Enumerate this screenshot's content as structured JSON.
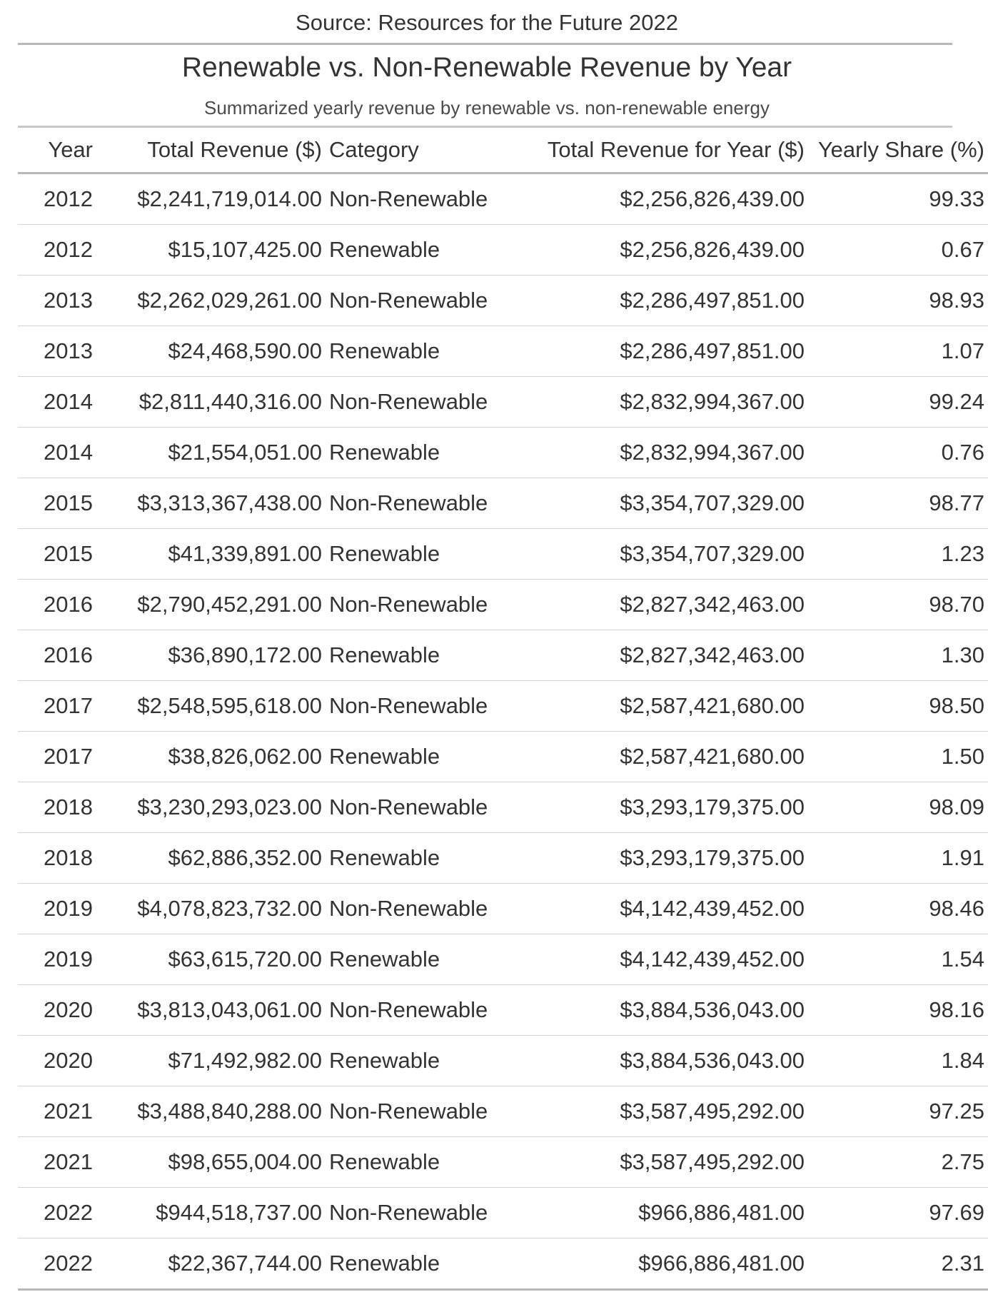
{
  "source": "Source: Resources for the Future 2022",
  "title": "Renewable vs. Non-Renewable Revenue by Year",
  "subtitle": "Summarized yearly revenue by renewable vs. non-renewable energy",
  "colors": {
    "text": "#333333",
    "rule": "#b8b8b8",
    "row_rule": "#d3d3d3"
  },
  "chart_data": {
    "type": "table",
    "columns": [
      "Year",
      "Total Revenue ($)",
      "Category",
      "Total Revenue for Year ($)",
      "Yearly Share (%)"
    ],
    "rows": [
      [
        "2012",
        "$2,241,719,014.00",
        "Non-Renewable",
        "$2,256,826,439.00",
        "99.33"
      ],
      [
        "2012",
        "$15,107,425.00",
        "Renewable",
        "$2,256,826,439.00",
        "0.67"
      ],
      [
        "2013",
        "$2,262,029,261.00",
        "Non-Renewable",
        "$2,286,497,851.00",
        "98.93"
      ],
      [
        "2013",
        "$24,468,590.00",
        "Renewable",
        "$2,286,497,851.00",
        "1.07"
      ],
      [
        "2014",
        "$2,811,440,316.00",
        "Non-Renewable",
        "$2,832,994,367.00",
        "99.24"
      ],
      [
        "2014",
        "$21,554,051.00",
        "Renewable",
        "$2,832,994,367.00",
        "0.76"
      ],
      [
        "2015",
        "$3,313,367,438.00",
        "Non-Renewable",
        "$3,354,707,329.00",
        "98.77"
      ],
      [
        "2015",
        "$41,339,891.00",
        "Renewable",
        "$3,354,707,329.00",
        "1.23"
      ],
      [
        "2016",
        "$2,790,452,291.00",
        "Non-Renewable",
        "$2,827,342,463.00",
        "98.70"
      ],
      [
        "2016",
        "$36,890,172.00",
        "Renewable",
        "$2,827,342,463.00",
        "1.30"
      ],
      [
        "2017",
        "$2,548,595,618.00",
        "Non-Renewable",
        "$2,587,421,680.00",
        "98.50"
      ],
      [
        "2017",
        "$38,826,062.00",
        "Renewable",
        "$2,587,421,680.00",
        "1.50"
      ],
      [
        "2018",
        "$3,230,293,023.00",
        "Non-Renewable",
        "$3,293,179,375.00",
        "98.09"
      ],
      [
        "2018",
        "$62,886,352.00",
        "Renewable",
        "$3,293,179,375.00",
        "1.91"
      ],
      [
        "2019",
        "$4,078,823,732.00",
        "Non-Renewable",
        "$4,142,439,452.00",
        "98.46"
      ],
      [
        "2019",
        "$63,615,720.00",
        "Renewable",
        "$4,142,439,452.00",
        "1.54"
      ],
      [
        "2020",
        "$3,813,043,061.00",
        "Non-Renewable",
        "$3,884,536,043.00",
        "98.16"
      ],
      [
        "2020",
        "$71,492,982.00",
        "Renewable",
        "$3,884,536,043.00",
        "1.84"
      ],
      [
        "2021",
        "$3,488,840,288.00",
        "Non-Renewable",
        "$3,587,495,292.00",
        "97.25"
      ],
      [
        "2021",
        "$98,655,004.00",
        "Renewable",
        "$3,587,495,292.00",
        "2.75"
      ],
      [
        "2022",
        "$944,518,737.00",
        "Non-Renewable",
        "$966,886,481.00",
        "97.69"
      ],
      [
        "2022",
        "$22,367,744.00",
        "Renewable",
        "$966,886,481.00",
        "2.31"
      ]
    ]
  }
}
